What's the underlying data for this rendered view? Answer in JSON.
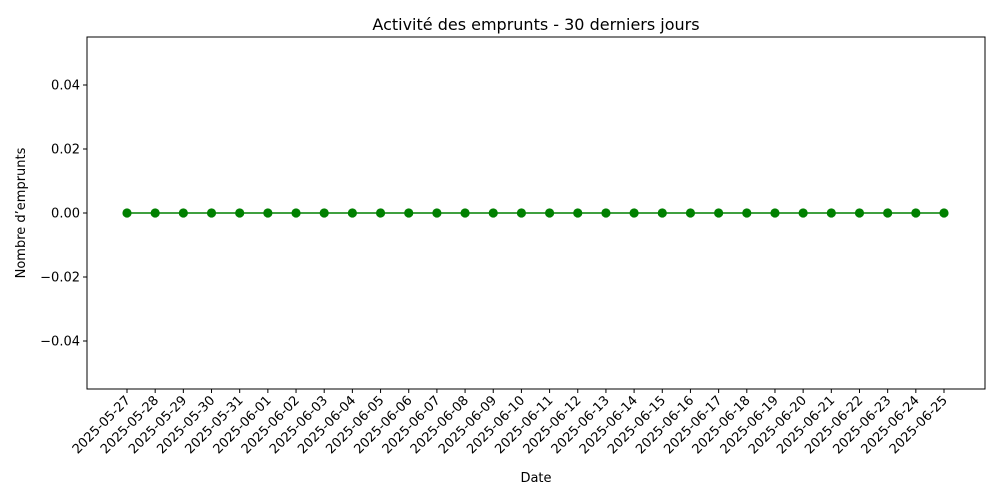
{
  "chart_data": {
    "type": "line",
    "title": "Activité des emprunts - 30 derniers jours",
    "xlabel": "Date",
    "ylabel": "Nombre d’emprunts",
    "x": [
      "2025-05-27",
      "2025-05-28",
      "2025-05-29",
      "2025-05-30",
      "2025-05-31",
      "2025-06-01",
      "2025-06-02",
      "2025-06-03",
      "2025-06-04",
      "2025-06-05",
      "2025-06-06",
      "2025-06-07",
      "2025-06-08",
      "2025-06-09",
      "2025-06-10",
      "2025-06-11",
      "2025-06-12",
      "2025-06-13",
      "2025-06-14",
      "2025-06-15",
      "2025-06-16",
      "2025-06-17",
      "2025-06-18",
      "2025-06-19",
      "2025-06-20",
      "2025-06-21",
      "2025-06-22",
      "2025-06-23",
      "2025-06-24",
      "2025-06-25"
    ],
    "series": [
      {
        "values": [
          0,
          0,
          0,
          0,
          0,
          0,
          0,
          0,
          0,
          0,
          0,
          0,
          0,
          0,
          0,
          0,
          0,
          0,
          0,
          0,
          0,
          0,
          0,
          0,
          0,
          0,
          0,
          0,
          0,
          0
        ],
        "color": "#008000",
        "marker": "circle"
      }
    ],
    "ylim": [
      -0.055,
      0.055
    ],
    "yticks": [
      0.04,
      0.02,
      0.0,
      -0.02,
      -0.04
    ],
    "ytick_labels": [
      "0.04",
      "0.02",
      "0.00",
      "−0.02",
      "−0.04"
    ],
    "grid": false,
    "legend": "none"
  }
}
